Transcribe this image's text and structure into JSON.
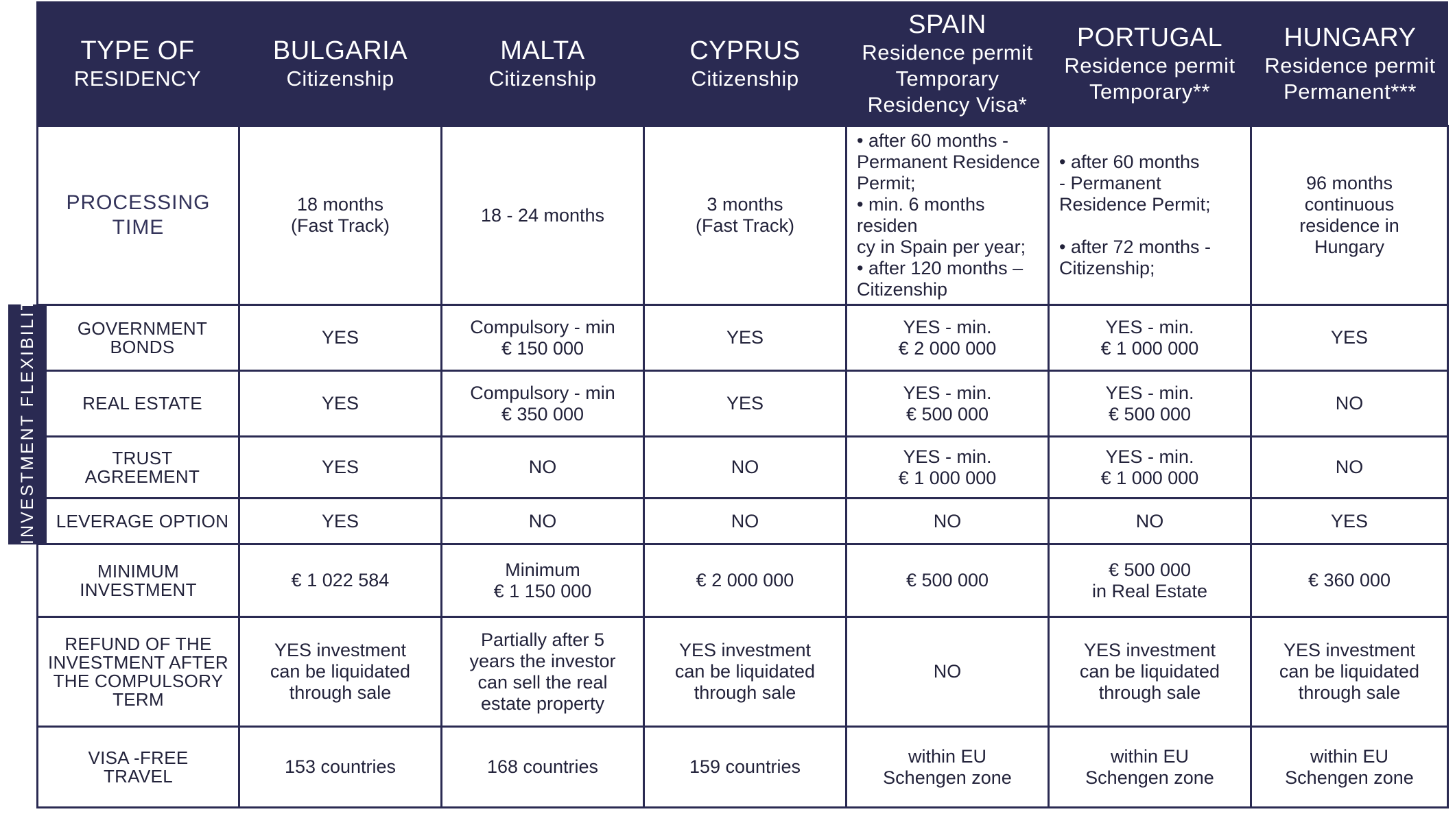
{
  "header": {
    "col0": {
      "line1": "TYPE OF",
      "line2": "RESIDENCY"
    },
    "bulgaria": {
      "line1": "BULGARIA",
      "line2": "Citizenship"
    },
    "malta": {
      "line1": "MALTA",
      "line2": "Citizenship"
    },
    "cyprus": {
      "line1": "CYPRUS",
      "line2": "Citizenship"
    },
    "spain": {
      "line1": "SPAIN",
      "line2": "Residence  permit",
      "line3": "Temporary",
      "line4": "Residency Visa*"
    },
    "portugal": {
      "line1": "PORTUGAL",
      "line2": "Residence  permit",
      "line3": "Temporary**"
    },
    "hungary": {
      "line1": "HUNGARY",
      "line2": "Residence  permit",
      "line3": "Permanent***"
    }
  },
  "side_label": "INVESTMENT  FLEXIBILITY",
  "processing": {
    "label1": "PROCESSING",
    "label2": "TIME",
    "bulgaria": [
      "18 months",
      "(Fast Track)"
    ],
    "malta": [
      "18 - 24 months"
    ],
    "cyprus": [
      "3  months",
      "(Fast Track)"
    ],
    "spain": [
      "• after 60 months -",
      "Permanent Residence",
      "Permit;",
      "• min. 6 months residen",
      "cy in Spain per year;",
      "• after 120 months –",
      "Citizenship"
    ],
    "portugal": [
      "• after 60 months",
      "- Permanent",
      "Residence Permit;",
      "",
      "• after 72 months -",
      "Citizenship;"
    ],
    "hungary": [
      "96 months",
      "continuous",
      "residence in",
      "Hungary"
    ]
  },
  "rows": {
    "bonds": {
      "label": [
        "GOVERNMENT",
        "BONDS"
      ],
      "bulgaria": [
        "YES"
      ],
      "malta": [
        "Compulsory - min",
        "€ 150 000"
      ],
      "cyprus": [
        "YES"
      ],
      "spain": [
        "YES - min.",
        "€ 2 000 000"
      ],
      "portugal": [
        "YES - min.",
        "€ 1 000 000"
      ],
      "hungary": [
        "YES"
      ]
    },
    "real_estate": {
      "label": [
        "REAL ESTATE"
      ],
      "bulgaria": [
        "YES"
      ],
      "malta": [
        "Compulsory - min",
        "€  350 000"
      ],
      "cyprus": [
        "YES"
      ],
      "spain": [
        "YES - min.",
        "€ 500 000"
      ],
      "portugal": [
        "YES - min.",
        "€ 500 000"
      ],
      "hungary": [
        "NO"
      ]
    },
    "trust": {
      "label": [
        "TRUST",
        "AGREEMENT"
      ],
      "bulgaria": [
        "YES"
      ],
      "malta": [
        "NO"
      ],
      "cyprus": [
        "NO"
      ],
      "spain": [
        "YES - min.",
        "€ 1 000 000"
      ],
      "portugal": [
        "YES - min.",
        "€ 1 000 000"
      ],
      "hungary": [
        "NO"
      ]
    },
    "leverage": {
      "label": [
        "LEVERAGE OPTION"
      ],
      "bulgaria": [
        "YES"
      ],
      "malta": [
        "NO"
      ],
      "cyprus": [
        "NO"
      ],
      "spain": [
        "NO"
      ],
      "portugal": [
        "NO"
      ],
      "hungary": [
        "YES"
      ]
    },
    "min_investment": {
      "label": [
        "MINIMUM",
        "INVESTMENT"
      ],
      "bulgaria": [
        "€ 1 022 584"
      ],
      "malta": [
        "Minimum",
        "€ 1 150 000"
      ],
      "cyprus": [
        "€ 2 000 000"
      ],
      "spain": [
        "€ 500 000"
      ],
      "portugal": [
        "€ 500 000",
        "in Real Estate"
      ],
      "hungary": [
        "€  360 000"
      ]
    },
    "refund": {
      "label": [
        "REFUND OF THE",
        "INVESTMENT AFTER",
        "THE COMPULSORY",
        "TERM"
      ],
      "bulgaria": [
        "YES investment",
        "can be liquidated",
        "through sale"
      ],
      "malta": [
        "Partially after 5",
        "years the investor",
        "can sell the real",
        "estate property"
      ],
      "cyprus": [
        "YES investment",
        "can be liquidated",
        "through sale"
      ],
      "spain": [
        "NO"
      ],
      "portugal": [
        "YES investment",
        "can be liquidated",
        "through sale"
      ],
      "hungary": [
        "YES investment",
        "can be liquidated",
        "through sale"
      ]
    },
    "visa": {
      "label": [
        "VISA -FREE",
        "TRAVEL"
      ],
      "bulgaria": [
        "153  countries"
      ],
      "malta": [
        "168 countries"
      ],
      "cyprus": [
        "159 countries"
      ],
      "spain": [
        "within EU",
        "Schengen zone"
      ],
      "portugal": [
        "within EU",
        "Schengen zone"
      ],
      "hungary": [
        "within EU",
        "Schengen zone"
      ]
    }
  },
  "colors": {
    "header_bg": "#2a2a52",
    "grid": "#2a2a52",
    "text": "#22223a"
  }
}
